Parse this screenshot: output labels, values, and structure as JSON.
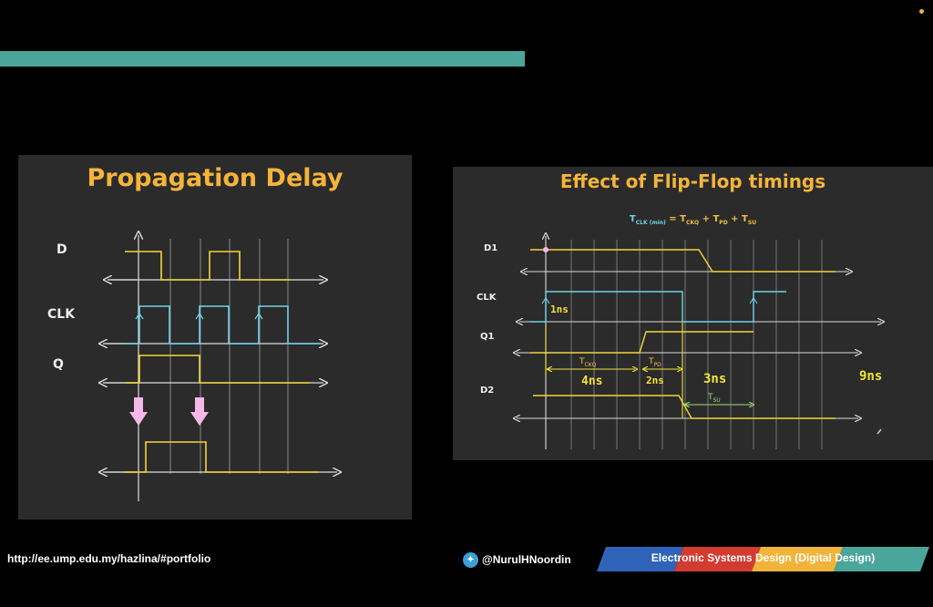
{
  "slide": {
    "accent_color": "#4aa59b",
    "footer_url": "http://ee.ump.edu.my/hazlina/#portfolio",
    "twitter_handle": "@NurulHNoordin",
    "course_title": "Electronic Systems Design (Digital Design)",
    "ribbon_colors": [
      "#2f63b8",
      "#d23b2f",
      "#f1b43a",
      "#4aa59b"
    ]
  },
  "left_panel": {
    "title": "Propagation Delay",
    "signals": [
      "D",
      "CLK",
      "Q"
    ]
  },
  "right_panel": {
    "title": "Effect of Flip-Flop timings",
    "formula": {
      "lhs": "T",
      "lhs_sub": "CLK (min)",
      "eq": "=",
      "t1": "T",
      "t1_sub": "CKQ",
      "plus": "+",
      "t2": "T",
      "t2_sub": "PD",
      "t3": "T",
      "t3_sub": "SU"
    },
    "signals": [
      "D1",
      "CLK",
      "Q1",
      "D2"
    ],
    "labels": {
      "tckq": "T",
      "tckq_sub": "CKQ",
      "tpd": "T",
      "tpd_sub": "PD",
      "tsu": "T",
      "tsu_sub": "SU"
    },
    "handwritten": {
      "one_ns": "1ns",
      "four_ns": "4ns",
      "two_ns": "2ns",
      "three_ns": "3ns",
      "nine_ns": "9ns"
    }
  }
}
